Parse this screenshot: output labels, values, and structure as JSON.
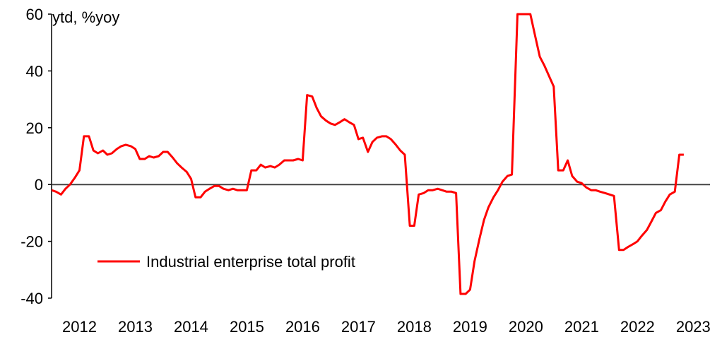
{
  "chart_data": {
    "type": "line",
    "title": "",
    "unit_label": "ytd, %yoy",
    "xlabel": "",
    "ylabel": "",
    "ylim": [
      -40,
      60
    ],
    "yticks": [
      60,
      40,
      20,
      0,
      -20,
      -40
    ],
    "ytick_labels": [
      "60",
      "40",
      "20",
      "0",
      "-20",
      "-40"
    ],
    "xlim": [
      2012.0,
      2023.8
    ],
    "xticks": [
      2012,
      2013,
      2014,
      2015,
      2016,
      2017,
      2018,
      2019,
      2020,
      2021,
      2022,
      2023
    ],
    "xtick_labels": [
      "2012",
      "2013",
      "2014",
      "2015",
      "2016",
      "2017",
      "2018",
      "2019",
      "2020",
      "2021",
      "2022",
      "2023"
    ],
    "grid": false,
    "zero_line": true,
    "legend_position": "lower-left",
    "series": [
      {
        "name": "Industrial enterprise total profit",
        "color": "#ff0000",
        "points": [
          [
            2012.0,
            -2.0
          ],
          [
            2012.08,
            -2.5
          ],
          [
            2012.17,
            -3.5
          ],
          [
            2012.25,
            -1.5
          ],
          [
            2012.33,
            0.0
          ],
          [
            2012.42,
            2.5
          ],
          [
            2012.5,
            5.0
          ],
          [
            2012.58,
            17.0
          ],
          [
            2012.67,
            17.0
          ],
          [
            2012.75,
            12.0
          ],
          [
            2012.83,
            11.0
          ],
          [
            2012.92,
            12.0
          ],
          [
            2013.0,
            10.5
          ],
          [
            2013.08,
            11.0
          ],
          [
            2013.17,
            12.5
          ],
          [
            2013.25,
            13.5
          ],
          [
            2013.33,
            14.0
          ],
          [
            2013.42,
            13.5
          ],
          [
            2013.5,
            12.5
          ],
          [
            2013.58,
            9.0
          ],
          [
            2013.67,
            9.0
          ],
          [
            2013.75,
            10.0
          ],
          [
            2013.83,
            9.5
          ],
          [
            2013.92,
            10.0
          ],
          [
            2014.0,
            11.5
          ],
          [
            2014.08,
            11.5
          ],
          [
            2014.17,
            9.5
          ],
          [
            2014.25,
            7.5
          ],
          [
            2014.33,
            6.0
          ],
          [
            2014.42,
            4.5
          ],
          [
            2014.5,
            2.0
          ],
          [
            2014.58,
            -4.5
          ],
          [
            2014.67,
            -4.5
          ],
          [
            2014.75,
            -2.5
          ],
          [
            2014.83,
            -1.5
          ],
          [
            2014.92,
            -0.5
          ],
          [
            2015.0,
            -0.5
          ],
          [
            2015.08,
            -1.5
          ],
          [
            2015.17,
            -2.0
          ],
          [
            2015.25,
            -1.5
          ],
          [
            2015.33,
            -2.0
          ],
          [
            2015.42,
            -2.0
          ],
          [
            2015.5,
            -2.0
          ],
          [
            2015.58,
            5.0
          ],
          [
            2015.67,
            5.0
          ],
          [
            2015.75,
            7.0
          ],
          [
            2015.83,
            6.0
          ],
          [
            2015.92,
            6.5
          ],
          [
            2016.0,
            6.0
          ],
          [
            2016.08,
            7.0
          ],
          [
            2016.17,
            8.5
          ],
          [
            2016.25,
            8.5
          ],
          [
            2016.33,
            8.5
          ],
          [
            2016.42,
            9.0
          ],
          [
            2016.5,
            8.5
          ],
          [
            2016.58,
            31.5
          ],
          [
            2016.67,
            31.0
          ],
          [
            2016.75,
            27.0
          ],
          [
            2016.83,
            24.0
          ],
          [
            2016.92,
            22.5
          ],
          [
            2017.0,
            21.5
          ],
          [
            2017.08,
            21.0
          ],
          [
            2017.17,
            22.0
          ],
          [
            2017.25,
            23.0
          ],
          [
            2017.33,
            22.0
          ],
          [
            2017.42,
            21.0
          ],
          [
            2017.5,
            16.0
          ],
          [
            2017.58,
            16.5
          ],
          [
            2017.67,
            11.5
          ],
          [
            2017.75,
            15.0
          ],
          [
            2017.83,
            16.5
          ],
          [
            2017.92,
            17.0
          ],
          [
            2018.0,
            17.0
          ],
          [
            2018.08,
            16.0
          ],
          [
            2018.17,
            14.0
          ],
          [
            2018.25,
            12.0
          ],
          [
            2018.33,
            10.5
          ],
          [
            2018.42,
            -14.5
          ],
          [
            2018.5,
            -14.5
          ],
          [
            2018.58,
            -3.5
          ],
          [
            2018.67,
            -3.0
          ],
          [
            2018.75,
            -2.0
          ],
          [
            2018.83,
            -2.0
          ],
          [
            2018.92,
            -1.5
          ],
          [
            2019.0,
            -2.0
          ],
          [
            2019.08,
            -2.5
          ],
          [
            2019.17,
            -2.5
          ],
          [
            2019.25,
            -3.0
          ],
          [
            2019.33,
            -38.5
          ],
          [
            2019.42,
            -38.5
          ],
          [
            2019.5,
            -37.0
          ],
          [
            2019.58,
            -27.0
          ],
          [
            2019.67,
            -19.0
          ],
          [
            2019.75,
            -12.5
          ],
          [
            2019.83,
            -8.0
          ],
          [
            2019.92,
            -4.5
          ],
          [
            2020.0,
            -2.0
          ],
          [
            2020.08,
            1.0
          ],
          [
            2020.17,
            3.0
          ],
          [
            2020.25,
            3.5
          ],
          [
            2020.35,
            60.0
          ],
          [
            2020.58,
            60.0
          ],
          [
            2020.67,
            52.0
          ],
          [
            2020.75,
            45.0
          ],
          [
            2020.83,
            42.0
          ],
          [
            2020.92,
            38.0
          ],
          [
            2021.0,
            34.5
          ],
          [
            2021.08,
            5.0
          ],
          [
            2021.17,
            5.0
          ],
          [
            2021.25,
            8.5
          ],
          [
            2021.33,
            3.0
          ],
          [
            2021.42,
            1.0
          ],
          [
            2021.5,
            0.5
          ],
          [
            2021.58,
            -1.0
          ],
          [
            2021.67,
            -2.0
          ],
          [
            2021.75,
            -2.0
          ],
          [
            2021.83,
            -2.5
          ],
          [
            2021.92,
            -3.0
          ],
          [
            2022.0,
            -3.5
          ],
          [
            2022.08,
            -4.0
          ],
          [
            2022.17,
            -23.0
          ],
          [
            2022.25,
            -23.0
          ],
          [
            2022.33,
            -22.0
          ],
          [
            2022.42,
            -21.0
          ],
          [
            2022.5,
            -20.0
          ],
          [
            2022.58,
            -18.0
          ],
          [
            2022.67,
            -16.0
          ],
          [
            2022.75,
            -13.0
          ],
          [
            2022.83,
            -10.0
          ],
          [
            2022.92,
            -9.0
          ],
          [
            2023.0,
            -6.0
          ],
          [
            2023.08,
            -3.5
          ],
          [
            2023.17,
            -2.5
          ],
          [
            2023.25,
            10.5
          ],
          [
            2023.33,
            10.5
          ]
        ]
      }
    ]
  }
}
